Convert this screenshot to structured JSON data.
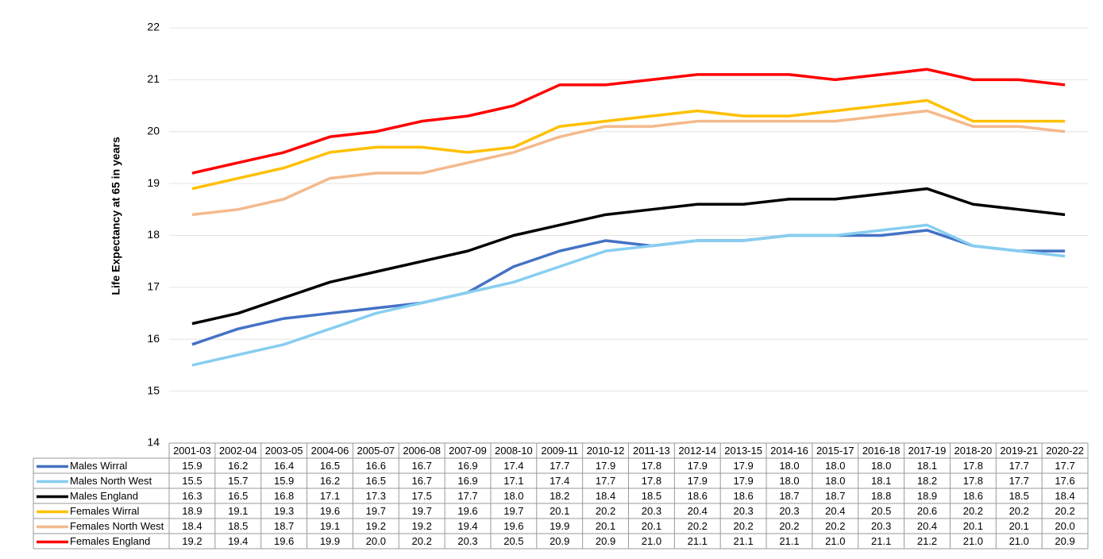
{
  "chart_data": {
    "type": "line",
    "y_label": "Life Expectancy at  65 in years",
    "categories": [
      "2001-03",
      "2002-04",
      "2003-05",
      "2004-06",
      "2005-07",
      "2006-08",
      "2007-09",
      "2008-10",
      "2009-11",
      "2010-12",
      "2011-13",
      "2012-14",
      "2013-15",
      "2014-16",
      "2015-17",
      "2016-18",
      "2017-19",
      "2018-20",
      "2019-21",
      "2020-22"
    ],
    "ylim": [
      14,
      22
    ],
    "yticks": [
      14,
      15,
      16,
      17,
      18,
      19,
      20,
      21,
      22
    ],
    "grid": true,
    "series": [
      {
        "name": "Males Wirral",
        "color": "#4472c4",
        "values": [
          15.9,
          16.2,
          16.4,
          16.5,
          16.6,
          16.7,
          16.9,
          17.4,
          17.7,
          17.9,
          17.8,
          17.9,
          17.9,
          18.0,
          18.0,
          18.0,
          18.1,
          17.8,
          17.7,
          17.7
        ],
        "value_labels": [
          "15.9",
          "16.2",
          "16.4",
          "16.5",
          "16.6",
          "16.7",
          "16.9",
          "17.4",
          "17.7",
          "17.9",
          "17.8",
          "17.9",
          "17.9",
          "18.0",
          "18.0",
          "18.0",
          "18.1",
          "17.8",
          "17.7",
          "17.7"
        ]
      },
      {
        "name": "Males North West",
        "color": "#87cef0",
        "values": [
          15.5,
          15.7,
          15.9,
          16.2,
          16.5,
          16.7,
          16.9,
          17.1,
          17.4,
          17.7,
          17.8,
          17.9,
          17.9,
          18.0,
          18.0,
          18.1,
          18.2,
          17.8,
          17.7,
          17.6
        ],
        "value_labels": [
          "15.5",
          "15.7",
          "15.9",
          "16.2",
          "16.5",
          "16.7",
          "16.9",
          "17.1",
          "17.4",
          "17.7",
          "17.8",
          "17.9",
          "17.9",
          "18.0",
          "18.0",
          "18.1",
          "18.2",
          "17.8",
          "17.7",
          "17.6"
        ]
      },
      {
        "name": "Males England",
        "color": "#000000",
        "values": [
          16.3,
          16.5,
          16.8,
          17.1,
          17.3,
          17.5,
          17.7,
          18.0,
          18.2,
          18.4,
          18.5,
          18.6,
          18.6,
          18.7,
          18.7,
          18.8,
          18.9,
          18.6,
          18.5,
          18.4
        ],
        "value_labels": [
          "16.3",
          "16.5",
          "16.8",
          "17.1",
          "17.3",
          "17.5",
          "17.7",
          "18.0",
          "18.2",
          "18.4",
          "18.5",
          "18.6",
          "18.6",
          "18.7",
          "18.7",
          "18.8",
          "18.9",
          "18.6",
          "18.5",
          "18.4"
        ]
      },
      {
        "name": "Females Wirral",
        "color": "#ffc000",
        "values": [
          18.9,
          19.1,
          19.3,
          19.6,
          19.7,
          19.7,
          19.6,
          19.7,
          20.1,
          20.2,
          20.3,
          20.4,
          20.3,
          20.3,
          20.4,
          20.5,
          20.6,
          20.2,
          20.2,
          20.2
        ],
        "value_labels": [
          "18.9",
          "19.1",
          "19.3",
          "19.6",
          "19.7",
          "19.7",
          "19.6",
          "19.7",
          "20.1",
          "20.2",
          "20.3",
          "20.4",
          "20.3",
          "20.3",
          "20.4",
          "20.5",
          "20.6",
          "20.2",
          "20.2",
          "20.2"
        ]
      },
      {
        "name": "Females North West",
        "color": "#f4b98c",
        "values": [
          18.4,
          18.5,
          18.7,
          19.1,
          19.2,
          19.2,
          19.4,
          19.6,
          19.9,
          20.1,
          20.1,
          20.2,
          20.2,
          20.2,
          20.2,
          20.3,
          20.4,
          20.1,
          20.1,
          20.0
        ],
        "value_labels": [
          "18.4",
          "18.5",
          "18.7",
          "19.1",
          "19.2",
          "19.2",
          "19.4",
          "19.6",
          "19.9",
          "20.1",
          "20.1",
          "20.2",
          "20.2",
          "20.2",
          "20.2",
          "20.3",
          "20.4",
          "20.1",
          "20.1",
          "20.0"
        ]
      },
      {
        "name": "Females England",
        "color": "#ff0000",
        "values": [
          19.2,
          19.4,
          19.6,
          19.9,
          20.0,
          20.2,
          20.3,
          20.5,
          20.9,
          20.9,
          21.0,
          21.1,
          21.1,
          21.1,
          21.0,
          21.1,
          21.2,
          21.0,
          21.0,
          20.9
        ],
        "value_labels": [
          "19.2",
          "19.4",
          "19.6",
          "19.9",
          "20.0",
          "20.2",
          "20.3",
          "20.5",
          "20.9",
          "20.9",
          "21.0",
          "21.1",
          "21.1",
          "21.1",
          "21.0",
          "21.1",
          "21.2",
          "21.0",
          "21.0",
          "20.9"
        ]
      }
    ]
  }
}
